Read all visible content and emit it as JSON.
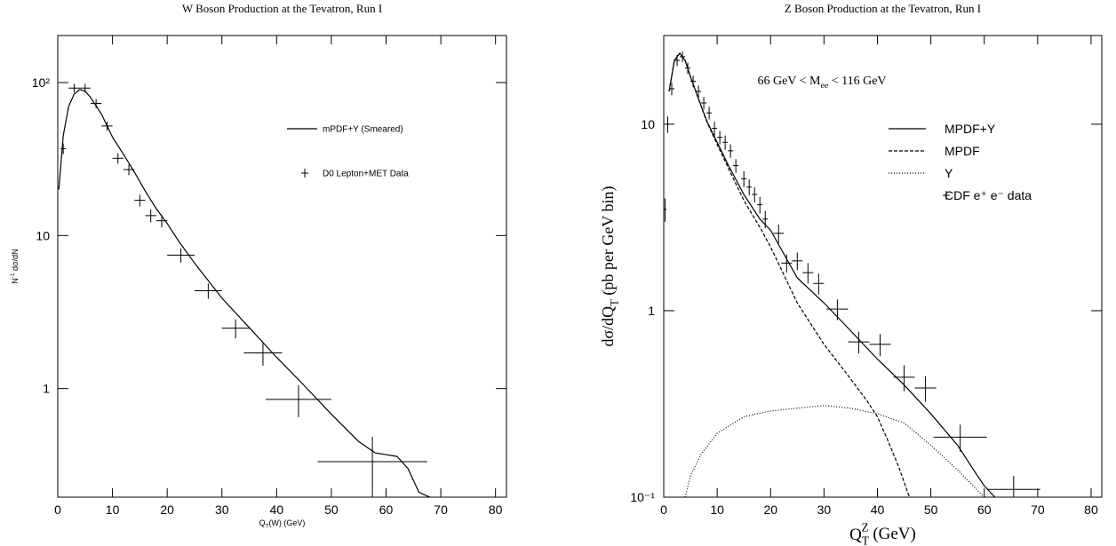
{
  "chart_data": [
    {
      "type": "line",
      "title": "W Boson Production at the Tevatron, Run I",
      "x_label": {
        "base": "Q",
        "sub": "T",
        "rest": "(W) (GeV)"
      },
      "y_label": {
        "base": "N",
        "sup": "-1",
        "rest": " dσ/dN"
      },
      "xlim": [
        0,
        82
      ],
      "xticks": [
        0,
        10,
        20,
        30,
        40,
        50,
        60,
        70,
        80
      ],
      "ylim": [
        0.195,
        203
      ],
      "ylog": true,
      "yticks": [
        1,
        10,
        {
          "value": 100,
          "label": "10²"
        }
      ],
      "legend": "upper right",
      "series": [
        {
          "name": "mPDF+Y (Smeared)",
          "color": "#000000",
          "style": "solid",
          "x": [
            0.2,
            1,
            2,
            3,
            4,
            5,
            6,
            8,
            10,
            12,
            14,
            16,
            18,
            20,
            22,
            25,
            30,
            35,
            40,
            45,
            50,
            55,
            58,
            60,
            62,
            64,
            66,
            68
          ],
          "values": [
            20,
            45,
            70,
            84,
            90,
            88,
            80,
            62,
            44,
            34,
            26,
            19.5,
            15,
            12,
            9.3,
            6.6,
            3.9,
            2.5,
            1.6,
            1.05,
            0.68,
            0.45,
            0.38,
            0.37,
            0.36,
            0.3,
            0.21,
            0.195
          ]
        },
        {
          "name": "D0 Lepton+MET Data",
          "color": "#000000",
          "style": "errorbar",
          "x": [
            1,
            3,
            5,
            7,
            9,
            11,
            13,
            15,
            17,
            19,
            22.5,
            27.5,
            32.5,
            37.5,
            44,
            57.5
          ],
          "xerr": [
            0.5,
            1,
            1,
            1,
            1,
            1,
            1,
            1,
            1,
            1,
            2.5,
            2.5,
            2.5,
            3.5,
            6,
            10
          ],
          "values": [
            37,
            92,
            92,
            73,
            52,
            32,
            27,
            17,
            13.5,
            12.5,
            7.45,
            4.36,
            2.48,
            1.71,
            0.85,
            0.333
          ],
          "yerr": [
            3,
            6,
            6,
            5,
            3.5,
            2.5,
            2.2,
            1.5,
            1.3,
            1.2,
            0.8,
            0.5,
            0.35,
            0.3,
            0.2,
            0.15
          ]
        }
      ]
    },
    {
      "type": "line",
      "title": "Z Boson Production at the Tevatron, Run I",
      "annotation": {
        "base": "66 GeV < M",
        "sub": "ee",
        "rest": " < 116 GeV"
      },
      "x_label": {
        "base": "Q",
        "sub": "T",
        "sup": "Z",
        "rest": " (GeV)"
      },
      "y_label": {
        "base": "dσ/dQ",
        "sub": "T",
        "rest": " (pb per GeV bin)"
      },
      "xlim": [
        0,
        82
      ],
      "xticks": [
        0,
        10,
        20,
        30,
        40,
        50,
        60,
        70,
        80
      ],
      "ylim": [
        0.1,
        29.9
      ],
      "ylog": true,
      "yticks": [
        {
          "value": 0.1,
          "label": "10⁻¹"
        },
        1,
        10
      ],
      "legend": "upper right",
      "series": [
        {
          "name": "MPDF+Y",
          "color": "#000000",
          "style": "solid",
          "x": [
            1,
            2,
            3,
            4,
            5,
            6,
            8,
            10,
            12,
            15,
            18,
            20,
            25,
            30,
            35,
            40,
            45,
            50,
            55,
            58,
            60,
            62
          ],
          "values": [
            15,
            22,
            24,
            22,
            18,
            15,
            10.5,
            8,
            6.1,
            4.2,
            3.1,
            2.7,
            1.5,
            1.1,
            0.78,
            0.55,
            0.4,
            0.28,
            0.19,
            0.14,
            0.115,
            0.1
          ]
        },
        {
          "name": "MPDF",
          "color": "#000000",
          "style": "dashed",
          "x": [
            1,
            2,
            3,
            4,
            5,
            6,
            8,
            10,
            12,
            15,
            18,
            20,
            25,
            30,
            35,
            38,
            40,
            42,
            44,
            46
          ],
          "values": [
            15,
            22,
            24,
            22,
            18,
            15,
            10.4,
            7.8,
            5.9,
            3.9,
            2.8,
            2.2,
            1.1,
            0.66,
            0.43,
            0.33,
            0.27,
            0.2,
            0.145,
            0.1
          ]
        },
        {
          "name": "Y",
          "color": "#000000",
          "style": "dotted",
          "x": [
            4,
            5,
            7,
            10,
            15,
            20,
            25,
            30,
            35,
            40,
            45,
            50,
            55,
            60
          ],
          "values": [
            0.1,
            0.13,
            0.17,
            0.22,
            0.27,
            0.29,
            0.3,
            0.31,
            0.3,
            0.28,
            0.25,
            0.19,
            0.14,
            0.1
          ]
        },
        {
          "name": "CDF e⁺ e⁻ data",
          "color": "#000000",
          "style": "errorbar",
          "x": [
            0.25,
            0.75,
            1.5,
            2.5,
            3.5,
            4.5,
            5.5,
            6.5,
            7.5,
            8.5,
            9.5,
            10.5,
            11.5,
            12.5,
            13.5,
            15,
            16,
            17,
            18,
            19,
            21.5,
            23,
            25,
            27,
            29,
            32.5,
            36.5,
            40.5,
            45,
            49,
            55.5,
            65.5
          ],
          "xerr": [
            0.25,
            0.25,
            0.5,
            0.5,
            0.5,
            0.5,
            0.5,
            0.5,
            0.5,
            0.5,
            0.5,
            0.5,
            0.5,
            0.5,
            0.5,
            0.5,
            0.5,
            0.5,
            0.5,
            0.5,
            1,
            1,
            1,
            1,
            1,
            2,
            2,
            2,
            2,
            2,
            5,
            5
          ],
          "values": [
            3.5,
            10,
            15.5,
            22,
            23,
            20,
            17,
            15,
            13,
            11.5,
            9.5,
            8.5,
            8,
            7.2,
            6,
            5.1,
            4.6,
            4.2,
            3.7,
            3.1,
            2.6,
            1.8,
            1.85,
            1.6,
            1.4,
            1.02,
            0.68,
            0.66,
            0.44,
            0.385,
            0.21,
            0.11
          ],
          "yerr": [
            0.5,
            1,
            1.2,
            1.5,
            1.5,
            1.4,
            1.2,
            1.1,
            1,
            0.9,
            0.8,
            0.7,
            0.7,
            0.6,
            0.5,
            0.5,
            0.45,
            0.4,
            0.38,
            0.33,
            0.3,
            0.2,
            0.2,
            0.2,
            0.18,
            0.13,
            0.09,
            0.09,
            0.07,
            0.06,
            0.035,
            0.02
          ]
        }
      ]
    }
  ]
}
